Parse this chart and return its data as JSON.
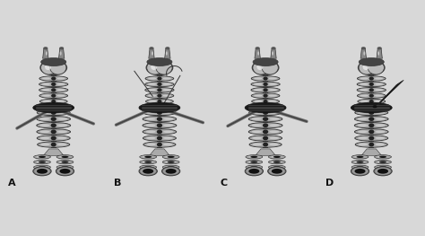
{
  "panels": [
    "A",
    "B",
    "C",
    "D"
  ],
  "bg_color": "#d8d8d8",
  "panel_bg": "#e8e8e8",
  "figsize": [
    4.74,
    2.63
  ],
  "dpi": 100,
  "label_fontsize": 8,
  "label_color": "#111111",
  "ring_light": "#cccccc",
  "ring_mid": "#aaaaaa",
  "ring_dark": "#666666",
  "ring_edge": "#333333",
  "membrane_color": "#222222",
  "larynx_light": "#bbbbbb",
  "larynx_mid": "#888888",
  "larynx_dark": "#444444",
  "instrument_color": "#555555",
  "white": "#f0f0f0",
  "grip_color": "#333333"
}
